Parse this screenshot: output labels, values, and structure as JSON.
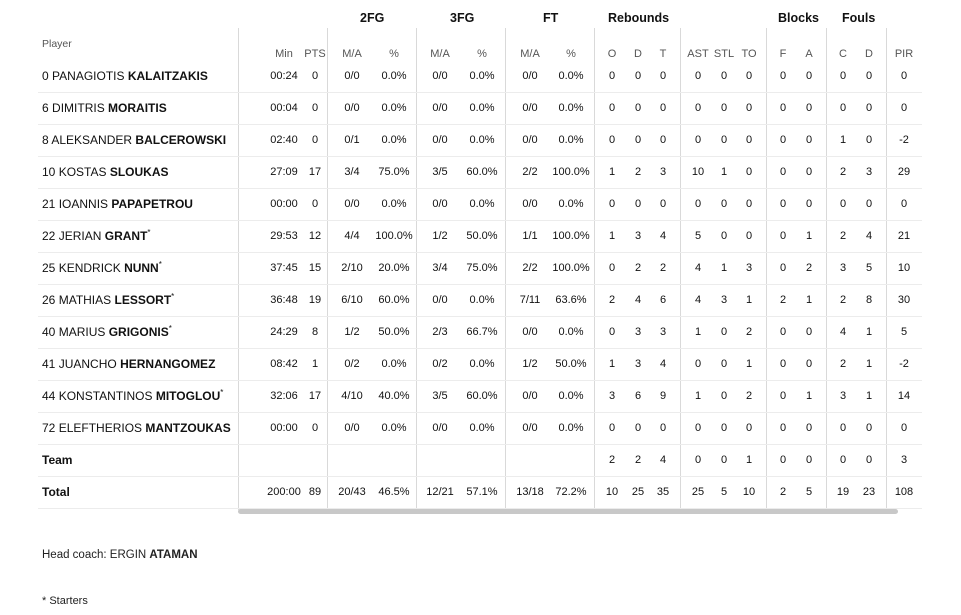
{
  "groups": {
    "fg2": "2FG",
    "fg3": "3FG",
    "ft": "FT",
    "rebounds": "Rebounds",
    "blocks": "Blocks",
    "fouls": "Fouls"
  },
  "headers": {
    "player": "Player",
    "min": "Min",
    "pts": "PTS",
    "fg2_ma": "M/A",
    "fg2_pct": "%",
    "fg3_ma": "M/A",
    "fg3_pct": "%",
    "ft_ma": "M/A",
    "ft_pct": "%",
    "o": "O",
    "d": "D",
    "t": "T",
    "ast": "AST",
    "stl": "STL",
    "to": "TO",
    "bf": "F",
    "ba": "A",
    "fc": "C",
    "fd": "D",
    "pir": "PIR"
  },
  "rows": [
    {
      "num": "0",
      "first": "PANAGIOTIS",
      "last": "KALAITZAKIS",
      "star": "",
      "min": "00:24",
      "pts": "0",
      "fg2": "0/0",
      "fg2p": "0.0%",
      "fg3": "0/0",
      "fg3p": "0.0%",
      "ft": "0/0",
      "ftp": "0.0%",
      "o": "0",
      "d": "0",
      "t": "0",
      "ast": "0",
      "stl": "0",
      "to": "0",
      "bf": "0",
      "ba": "0",
      "fc": "0",
      "fd": "0",
      "pir": "0"
    },
    {
      "num": "6",
      "first": "DIMITRIS",
      "last": "MORAITIS",
      "star": "",
      "min": "00:04",
      "pts": "0",
      "fg2": "0/0",
      "fg2p": "0.0%",
      "fg3": "0/0",
      "fg3p": "0.0%",
      "ft": "0/0",
      "ftp": "0.0%",
      "o": "0",
      "d": "0",
      "t": "0",
      "ast": "0",
      "stl": "0",
      "to": "0",
      "bf": "0",
      "ba": "0",
      "fc": "0",
      "fd": "0",
      "pir": "0"
    },
    {
      "num": "8",
      "first": "ALEKSANDER",
      "last": "BALCEROWSKI",
      "star": "",
      "min": "02:40",
      "pts": "0",
      "fg2": "0/1",
      "fg2p": "0.0%",
      "fg3": "0/0",
      "fg3p": "0.0%",
      "ft": "0/0",
      "ftp": "0.0%",
      "o": "0",
      "d": "0",
      "t": "0",
      "ast": "0",
      "stl": "0",
      "to": "0",
      "bf": "0",
      "ba": "0",
      "fc": "1",
      "fd": "0",
      "pir": "-2"
    },
    {
      "num": "10",
      "first": "KOSTAS",
      "last": "SLOUKAS",
      "star": "",
      "min": "27:09",
      "pts": "17",
      "fg2": "3/4",
      "fg2p": "75.0%",
      "fg3": "3/5",
      "fg3p": "60.0%",
      "ft": "2/2",
      "ftp": "100.0%",
      "o": "1",
      "d": "2",
      "t": "3",
      "ast": "10",
      "stl": "1",
      "to": "0",
      "bf": "0",
      "ba": "0",
      "fc": "2",
      "fd": "3",
      "pir": "29"
    },
    {
      "num": "21",
      "first": "IOANNIS",
      "last": "PAPAPETROU",
      "star": "",
      "min": "00:00",
      "pts": "0",
      "fg2": "0/0",
      "fg2p": "0.0%",
      "fg3": "0/0",
      "fg3p": "0.0%",
      "ft": "0/0",
      "ftp": "0.0%",
      "o": "0",
      "d": "0",
      "t": "0",
      "ast": "0",
      "stl": "0",
      "to": "0",
      "bf": "0",
      "ba": "0",
      "fc": "0",
      "fd": "0",
      "pir": "0"
    },
    {
      "num": "22",
      "first": "JERIAN",
      "last": "GRANT",
      "star": "*",
      "min": "29:53",
      "pts": "12",
      "fg2": "4/4",
      "fg2p": "100.0%",
      "fg3": "1/2",
      "fg3p": "50.0%",
      "ft": "1/1",
      "ftp": "100.0%",
      "o": "1",
      "d": "3",
      "t": "4",
      "ast": "5",
      "stl": "0",
      "to": "0",
      "bf": "0",
      "ba": "1",
      "fc": "2",
      "fd": "4",
      "pir": "21"
    },
    {
      "num": "25",
      "first": "KENDRICK",
      "last": "NUNN",
      "star": "*",
      "min": "37:45",
      "pts": "15",
      "fg2": "2/10",
      "fg2p": "20.0%",
      "fg3": "3/4",
      "fg3p": "75.0%",
      "ft": "2/2",
      "ftp": "100.0%",
      "o": "0",
      "d": "2",
      "t": "2",
      "ast": "4",
      "stl": "1",
      "to": "3",
      "bf": "0",
      "ba": "2",
      "fc": "3",
      "fd": "5",
      "pir": "10"
    },
    {
      "num": "26",
      "first": "MATHIAS",
      "last": "LESSORT",
      "star": "*",
      "min": "36:48",
      "pts": "19",
      "fg2": "6/10",
      "fg2p": "60.0%",
      "fg3": "0/0",
      "fg3p": "0.0%",
      "ft": "7/11",
      "ftp": "63.6%",
      "o": "2",
      "d": "4",
      "t": "6",
      "ast": "4",
      "stl": "3",
      "to": "1",
      "bf": "2",
      "ba": "1",
      "fc": "2",
      "fd": "8",
      "pir": "30"
    },
    {
      "num": "40",
      "first": "MARIUS",
      "last": "GRIGONIS",
      "star": "*",
      "min": "24:29",
      "pts": "8",
      "fg2": "1/2",
      "fg2p": "50.0%",
      "fg3": "2/3",
      "fg3p": "66.7%",
      "ft": "0/0",
      "ftp": "0.0%",
      "o": "0",
      "d": "3",
      "t": "3",
      "ast": "1",
      "stl": "0",
      "to": "2",
      "bf": "0",
      "ba": "0",
      "fc": "4",
      "fd": "1",
      "pir": "5"
    },
    {
      "num": "41",
      "first": "JUANCHO",
      "last": "HERNANGOMEZ",
      "star": "",
      "min": "08:42",
      "pts": "1",
      "fg2": "0/2",
      "fg2p": "0.0%",
      "fg3": "0/2",
      "fg3p": "0.0%",
      "ft": "1/2",
      "ftp": "50.0%",
      "o": "1",
      "d": "3",
      "t": "4",
      "ast": "0",
      "stl": "0",
      "to": "1",
      "bf": "0",
      "ba": "0",
      "fc": "2",
      "fd": "1",
      "pir": "-2"
    },
    {
      "num": "44",
      "first": "KONSTANTINOS",
      "last": "MITOGLOU",
      "star": "*",
      "min": "32:06",
      "pts": "17",
      "fg2": "4/10",
      "fg2p": "40.0%",
      "fg3": "3/5",
      "fg3p": "60.0%",
      "ft": "0/0",
      "ftp": "0.0%",
      "o": "3",
      "d": "6",
      "t": "9",
      "ast": "1",
      "stl": "0",
      "to": "2",
      "bf": "0",
      "ba": "1",
      "fc": "3",
      "fd": "1",
      "pir": "14"
    },
    {
      "num": "72",
      "first": "ELEFTHERIOS",
      "last": "MANTZOUKAS",
      "star": "",
      "min": "00:00",
      "pts": "0",
      "fg2": "0/0",
      "fg2p": "0.0%",
      "fg3": "0/0",
      "fg3p": "0.0%",
      "ft": "0/0",
      "ftp": "0.0%",
      "o": "0",
      "d": "0",
      "t": "0",
      "ast": "0",
      "stl": "0",
      "to": "0",
      "bf": "0",
      "ba": "0",
      "fc": "0",
      "fd": "0",
      "pir": "0"
    }
  ],
  "team": {
    "label": "Team",
    "o": "2",
    "d": "2",
    "t": "4",
    "ast": "0",
    "stl": "0",
    "to": "1",
    "bf": "0",
    "ba": "0",
    "fc": "0",
    "fd": "0",
    "pir": "3"
  },
  "total": {
    "label": "Total",
    "min": "200:00",
    "pts": "89",
    "fg2": "20/43",
    "fg2p": "46.5%",
    "fg3": "12/21",
    "fg3p": "57.1%",
    "ft": "13/18",
    "ftp": "72.2%",
    "o": "10",
    "d": "25",
    "t": "35",
    "ast": "25",
    "stl": "5",
    "to": "10",
    "bf": "2",
    "ba": "5",
    "fc": "19",
    "fd": "23",
    "pir": "108"
  },
  "footer": {
    "coach_label": "Head coach:",
    "coach_first": "ERGIN",
    "coach_last": "ATAMAN",
    "starters_note": "* Starters"
  }
}
